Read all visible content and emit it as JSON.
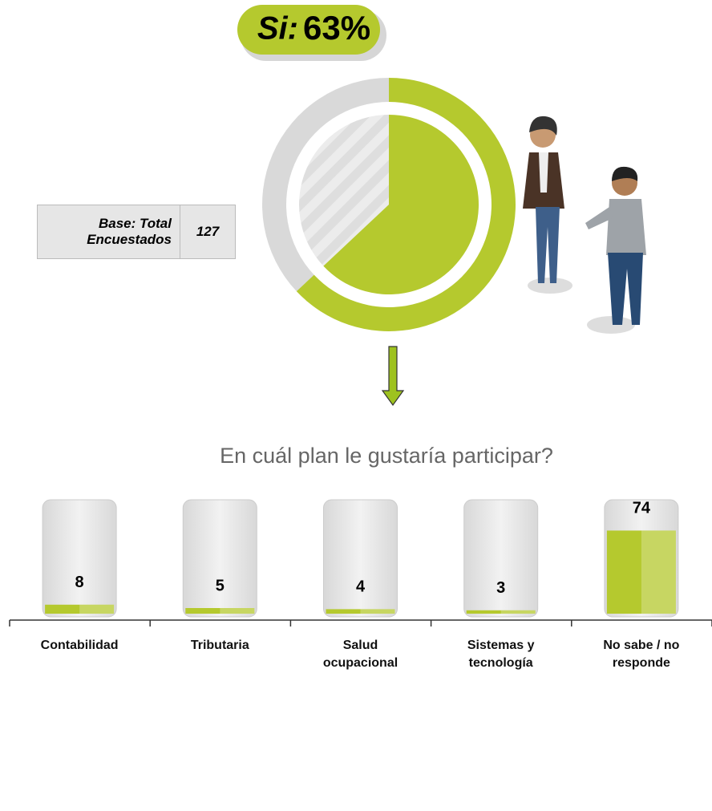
{
  "badge": {
    "label": "Si:",
    "value": 63,
    "value_label": "63%"
  },
  "base": {
    "label": "Base: Total Encuestados",
    "value": 127
  },
  "chart_data": {
    "type": "bar",
    "title": "En cuál plan le gustaría participar?",
    "categories": [
      "Contabilidad",
      "Tributaria",
      "Salud ocupacional",
      "Sistemas y tecnología",
      "No sabe / no responde"
    ],
    "values": [
      8,
      5,
      4,
      3,
      74
    ],
    "color": "#b5c92e",
    "ylim": [
      0,
      100
    ]
  }
}
